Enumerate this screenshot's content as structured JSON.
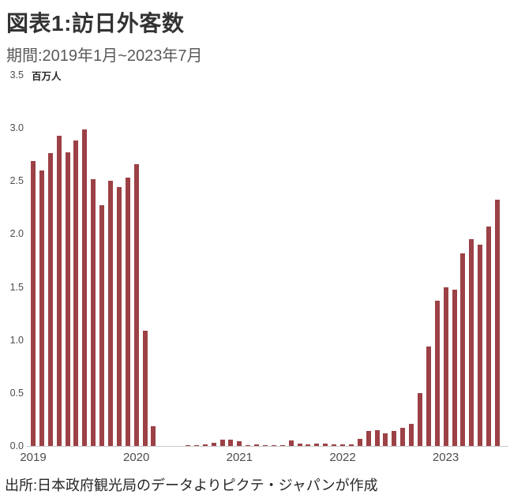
{
  "header": {
    "title": "図表1:訪日外客数",
    "subtitle": "期間:2019年1月~2023年7月"
  },
  "chart_data": {
    "type": "bar",
    "title": "図表1:訪日外客数",
    "subtitle": "期間:2019年1月~2023年7月",
    "unit_label": "百万人",
    "top_tick_label": "3.5",
    "bar_color": "#9c4146",
    "ylim": [
      0,
      3.5
    ],
    "grid": "off",
    "y_ticks": [
      3.0,
      2.5,
      2.0,
      1.5,
      1.0,
      0.5,
      0.0
    ],
    "x_year_labels": [
      "2019",
      "2020",
      "2021",
      "2022",
      "2023"
    ],
    "x": [
      "2019-01",
      "2019-02",
      "2019-03",
      "2019-04",
      "2019-05",
      "2019-06",
      "2019-07",
      "2019-08",
      "2019-09",
      "2019-10",
      "2019-11",
      "2019-12",
      "2020-01",
      "2020-02",
      "2020-03",
      "2020-04",
      "2020-05",
      "2020-06",
      "2020-07",
      "2020-08",
      "2020-09",
      "2020-10",
      "2020-11",
      "2020-12",
      "2021-01",
      "2021-02",
      "2021-03",
      "2021-04",
      "2021-05",
      "2021-06",
      "2021-07",
      "2021-08",
      "2021-09",
      "2021-10",
      "2021-11",
      "2021-12",
      "2022-01",
      "2022-02",
      "2022-03",
      "2022-04",
      "2022-05",
      "2022-06",
      "2022-07",
      "2022-08",
      "2022-09",
      "2022-10",
      "2022-11",
      "2022-12",
      "2023-01",
      "2023-02",
      "2023-03",
      "2023-04",
      "2023-05",
      "2023-06",
      "2023-07"
    ],
    "values": [
      2.69,
      2.6,
      2.76,
      2.93,
      2.77,
      2.88,
      2.99,
      2.52,
      2.27,
      2.5,
      2.44,
      2.53,
      2.66,
      1.09,
      0.19,
      0.003,
      0.002,
      0.003,
      0.004,
      0.009,
      0.014,
      0.027,
      0.057,
      0.059,
      0.047,
      0.007,
      0.012,
      0.011,
      0.01,
      0.009,
      0.051,
      0.026,
      0.018,
      0.022,
      0.021,
      0.012,
      0.018,
      0.017,
      0.066,
      0.139,
      0.147,
      0.121,
      0.144,
      0.17,
      0.206,
      0.499,
      0.935,
      1.37,
      1.497,
      1.475,
      1.817,
      1.949,
      1.899,
      2.073,
      2.321
    ]
  },
  "footer": {
    "source": "出所:日本政府観光局のデータよりピクテ・ジャパンが作成"
  }
}
